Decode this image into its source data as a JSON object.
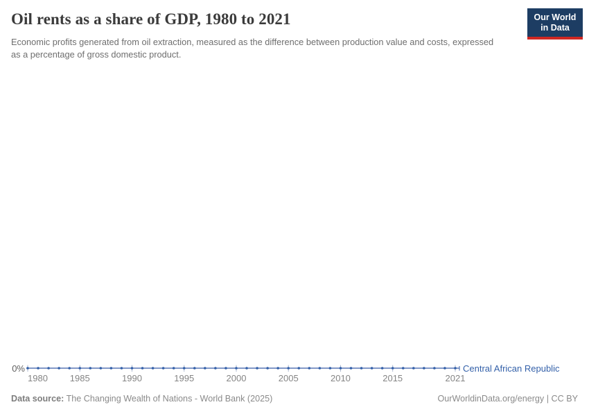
{
  "header": {
    "title": "Oil rents as a share of GDP, 1980 to 2021",
    "subtitle": "Economic profits generated from oil extraction, measured as the difference between production value and costs, expressed as a percentage of gross domestic product."
  },
  "logo": {
    "line1": "Our World",
    "line2": "in Data",
    "bg_color": "#1d3d63",
    "accent_color": "#cf2823"
  },
  "chart_data": {
    "type": "line",
    "title": "Oil rents as a share of GDP, 1980 to 2021",
    "xlabel": "",
    "ylabel": "",
    "grid": false,
    "ylim": [
      0,
      1
    ],
    "y_tick_labels": [
      "0%"
    ],
    "x_ticks": [
      1980,
      1985,
      1990,
      1995,
      2000,
      2005,
      2010,
      2015,
      2021
    ],
    "x": [
      1980,
      1981,
      1982,
      1983,
      1984,
      1985,
      1986,
      1987,
      1988,
      1989,
      1990,
      1991,
      1992,
      1993,
      1994,
      1995,
      1996,
      1997,
      1998,
      1999,
      2000,
      2001,
      2002,
      2003,
      2004,
      2005,
      2006,
      2007,
      2008,
      2009,
      2010,
      2011,
      2012,
      2013,
      2014,
      2015,
      2016,
      2017,
      2018,
      2019,
      2020,
      2021
    ],
    "series": [
      {
        "name": "Central African Republic",
        "color": "#3360a9",
        "line_color": "#5877b5",
        "tick_color": "#a9b6cf",
        "values": [
          0,
          0,
          0,
          0,
          0,
          0,
          0,
          0,
          0,
          0,
          0,
          0,
          0,
          0,
          0,
          0,
          0,
          0,
          0,
          0,
          0,
          0,
          0,
          0,
          0,
          0,
          0,
          0,
          0,
          0,
          0,
          0,
          0,
          0,
          0,
          0,
          0,
          0,
          0,
          0,
          0,
          0
        ]
      }
    ],
    "legend_position": "end-of-line"
  },
  "footer": {
    "source_label": "Data source:",
    "source_text": "The Changing Wealth of Nations - World Bank (2025)",
    "credit": "OurWorldinData.org/energy | CC BY"
  }
}
